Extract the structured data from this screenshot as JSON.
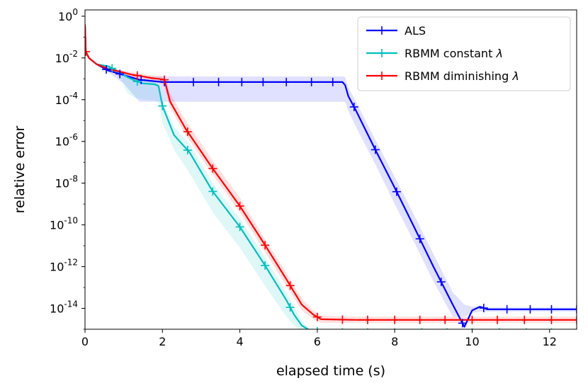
{
  "chart_data": {
    "type": "line",
    "xlabel": "elapsed time (s)",
    "ylabel": "relative error",
    "yscale": "log",
    "xlim": [
      0,
      12.7
    ],
    "ylim": [
      1e-15,
      2
    ],
    "xticks": [
      {
        "value": 0,
        "label": "0"
      },
      {
        "value": 2,
        "label": "2"
      },
      {
        "value": 4,
        "label": "4"
      },
      {
        "value": 6,
        "label": "6"
      },
      {
        "value": 8,
        "label": "8"
      },
      {
        "value": 10,
        "label": "10"
      },
      {
        "value": 12,
        "label": "12"
      }
    ],
    "yticks": [
      {
        "value": 1,
        "base": "10",
        "exp": "0"
      },
      {
        "value": 0.01,
        "base": "10",
        "exp": "-2"
      },
      {
        "value": 0.0001,
        "base": "10",
        "exp": "-4"
      },
      {
        "value": 1e-06,
        "base": "10",
        "exp": "-6"
      },
      {
        "value": 1e-08,
        "base": "10",
        "exp": "-8"
      },
      {
        "value": 1e-10,
        "base": "10",
        "exp": "-10"
      },
      {
        "value": 1e-12,
        "base": "10",
        "exp": "-12"
      },
      {
        "value": 1e-14,
        "base": "10",
        "exp": "-14"
      }
    ],
    "grid": false,
    "legend_position": "top-right",
    "series": [
      {
        "name": "ALS",
        "label_main": "ALS",
        "label_suffix": "",
        "color": "#0000ff",
        "band_color": "#0000ff",
        "x": [
          0,
          0.02,
          0.1,
          0.3,
          0.6,
          1.0,
          1.4,
          2.0,
          3.0,
          4.0,
          5.0,
          6.0,
          6.65,
          6.72,
          6.8,
          7.0,
          7.5,
          8.0,
          8.5,
          9.0,
          9.5,
          9.8,
          10.0,
          10.2,
          10.4,
          11.0,
          12.0,
          12.7
        ],
        "y": [
          0.3,
          0.02,
          0.01,
          0.005,
          0.0025,
          0.0015,
          0.0009,
          0.0007,
          0.0007,
          0.0007,
          0.0007,
          0.0007,
          0.0007,
          0.0005,
          0.00015,
          3e-05,
          4e-07,
          6e-09,
          8e-11,
          1e-12,
          1.5e-14,
          1.3e-15,
          8e-15,
          1.2e-14,
          9e-15,
          9e-15,
          9e-15,
          9e-15
        ],
        "band_lower": [
          0.3,
          0.02,
          0.01,
          0.005,
          0.002,
          0.0006,
          8e-05,
          8e-05,
          8e-05,
          8e-05,
          8e-05,
          8e-05,
          8e-05,
          8e-05,
          3e-05,
          5e-06,
          8e-08,
          1e-09,
          1.5e-11,
          2e-13,
          4e-15,
          4e-15,
          6e-15,
          7e-15,
          7e-15,
          7e-15,
          7e-15,
          7e-15
        ],
        "band_upper": [
          0.3,
          0.02,
          0.01,
          0.005,
          0.0028,
          0.0018,
          0.0013,
          0.0013,
          0.0013,
          0.0013,
          0.0013,
          0.0013,
          0.0013,
          0.0012,
          0.0004,
          8e-05,
          1.2e-06,
          2e-08,
          3e-10,
          4e-12,
          6e-14,
          1.5e-14,
          1.2e-14,
          1.3e-14,
          1.1e-14,
          1.1e-14,
          1.1e-14,
          1.1e-14
        ],
        "marker_x": [
          0.55,
          0.9,
          1.45,
          2.05,
          2.8,
          3.45,
          4.05,
          4.6,
          5.2,
          5.85,
          6.4,
          6.95,
          7.5,
          8.05,
          8.65,
          9.2,
          9.75,
          10.3,
          10.9,
          11.5,
          12.05,
          12.7
        ]
      },
      {
        "name": "RBMM constant λ",
        "label_main": "RBMM constant ",
        "label_suffix": "λ",
        "color": "#00bfbf",
        "band_color": "#00bfbf",
        "x": [
          0,
          0.02,
          0.1,
          0.3,
          0.6,
          0.9,
          1.1,
          1.3,
          1.5,
          1.8,
          1.9,
          2.0,
          2.3,
          2.7,
          3.3,
          4.0,
          4.6,
          5.2,
          5.4,
          5.6,
          5.8,
          6.0,
          6.4,
          7.0,
          8.0,
          9.0,
          10.0,
          11.0,
          12.0,
          12.7
        ],
        "y": [
          0.3,
          0.02,
          0.01,
          0.005,
          0.004,
          0.002,
          0.0012,
          0.0008,
          0.0006,
          0.00055,
          0.00045,
          5e-05,
          2e-06,
          3e-07,
          4e-09,
          8e-11,
          1.6e-12,
          2.5e-14,
          5e-15,
          1.5e-15,
          9e-16,
          8e-16,
          7e-16,
          7e-16,
          7e-16,
          7e-16,
          7e-16,
          7e-16,
          7e-16,
          7e-16
        ],
        "band_lower": [
          0.3,
          0.02,
          0.01,
          0.005,
          0.0035,
          0.0012,
          0.0002,
          0.00012,
          0.0001,
          9e-05,
          7e-05,
          8e-06,
          4e-07,
          3e-08,
          4e-10,
          8e-12,
          1.6e-13,
          4e-15,
          1.5e-15,
          8e-16,
          6e-16,
          5e-16,
          5e-16,
          5e-16,
          5e-16,
          5e-16,
          5e-16,
          5e-16,
          5e-16,
          5e-16
        ],
        "band_upper": [
          0.3,
          0.02,
          0.01,
          0.005,
          0.0045,
          0.0025,
          0.0015,
          0.001,
          0.0008,
          0.0007,
          0.0006,
          9e-05,
          5e-06,
          8e-07,
          1e-08,
          2e-10,
          4e-12,
          6e-14,
          1.2e-14,
          2.5e-15,
          1.1e-15,
          1e-15,
          9e-16,
          9e-16,
          9e-16,
          9e-16,
          9e-16,
          9e-16,
          9e-16,
          9e-16
        ],
        "marker_x": [
          0.7,
          1.35,
          2.0,
          2.65,
          3.3,
          4.0,
          4.65,
          5.3,
          6.0,
          6.65,
          7.3,
          8.0,
          8.7,
          9.35,
          10.0,
          10.7,
          11.4,
          12.05,
          12.7
        ]
      },
      {
        "name": "RBMM diminishing λ",
        "label_main": "RBMM diminishing ",
        "label_suffix": "λ",
        "color": "#ff0000",
        "band_color": "#ff0000",
        "x": [
          0,
          0.02,
          0.1,
          0.3,
          0.6,
          0.9,
          1.2,
          1.5,
          1.7,
          1.9,
          2.05,
          2.1,
          2.2,
          2.6,
          3.3,
          4.0,
          4.6,
          5.2,
          5.6,
          5.9,
          6.1,
          7.0,
          8.0,
          9.0,
          10.0,
          11.0,
          12.0,
          12.7
        ],
        "y": [
          0.4,
          0.02,
          0.01,
          0.005,
          0.003,
          0.0022,
          0.0016,
          0.0013,
          0.0011,
          0.001,
          0.0009,
          0.0004,
          8e-05,
          4e-06,
          5e-08,
          8e-10,
          1.5e-11,
          2.5e-13,
          1.5e-14,
          5e-15,
          3e-15,
          2.8e-15,
          2.8e-15,
          2.8e-15,
          2.8e-15,
          2.8e-15,
          2.8e-15,
          2.8e-15
        ],
        "band_lower": [
          0.4,
          0.02,
          0.01,
          0.005,
          0.0025,
          0.0018,
          0.0012,
          0.001,
          0.0008,
          0.0007,
          0.0005,
          0.0002,
          4e-05,
          2e-06,
          2.5e-08,
          4e-10,
          7e-12,
          1.2e-13,
          8e-15,
          3e-15,
          2e-15,
          2e-15,
          2e-15,
          2e-15,
          2e-15,
          2e-15,
          2e-15,
          2e-15
        ],
        "band_upper": [
          0.4,
          0.02,
          0.01,
          0.005,
          0.0035,
          0.0027,
          0.0021,
          0.0017,
          0.0015,
          0.0014,
          0.0013,
          0.0009,
          0.0002,
          1e-05,
          1.2e-07,
          2e-09,
          3e-11,
          5e-13,
          3e-14,
          8e-15,
          4.5e-15,
          4e-15,
          4e-15,
          4e-15,
          4e-15,
          4e-15,
          4e-15,
          4e-15
        ],
        "marker_x": [
          0.02,
          1.35,
          2.05,
          2.65,
          3.3,
          4.0,
          4.65,
          5.3,
          6.0,
          6.65,
          7.3,
          8.0,
          8.65,
          9.3,
          10.0,
          10.65,
          11.35,
          12.05,
          12.7
        ]
      }
    ]
  }
}
